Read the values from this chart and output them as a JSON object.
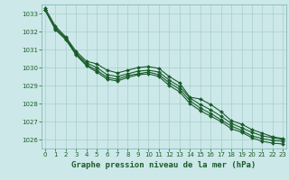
{
  "xlabel": "Graphe pression niveau de la mer (hPa)",
  "xlim": [
    -0.3,
    23.3
  ],
  "ylim": [
    1025.5,
    1033.5
  ],
  "yticks": [
    1026,
    1027,
    1028,
    1029,
    1030,
    1031,
    1032,
    1033
  ],
  "xticks": [
    0,
    1,
    2,
    3,
    4,
    5,
    6,
    7,
    8,
    9,
    10,
    11,
    12,
    13,
    14,
    15,
    16,
    17,
    18,
    19,
    20,
    21,
    22,
    23
  ],
  "background_color": "#cce8e8",
  "grid_color": "#aacece",
  "line_color": "#1a5c2a",
  "series": [
    [
      1033.3,
      1032.3,
      1031.7,
      1030.9,
      1030.35,
      1030.2,
      1029.85,
      1029.7,
      1029.85,
      1030.0,
      1030.05,
      1029.95,
      1029.5,
      1029.15,
      1028.35,
      1028.25,
      1027.95,
      1027.55,
      1027.05,
      1026.85,
      1026.55,
      1026.35,
      1026.15,
      1026.05
    ],
    [
      1033.2,
      1032.2,
      1031.65,
      1030.8,
      1030.25,
      1030.0,
      1029.6,
      1029.5,
      1029.65,
      1029.8,
      1029.85,
      1029.75,
      1029.3,
      1028.95,
      1028.3,
      1027.95,
      1027.65,
      1027.3,
      1026.9,
      1026.65,
      1026.4,
      1026.2,
      1026.1,
      1026.0
    ],
    [
      1033.2,
      1032.15,
      1031.6,
      1030.75,
      1030.15,
      1029.85,
      1029.45,
      1029.35,
      1029.55,
      1029.65,
      1029.75,
      1029.6,
      1029.15,
      1028.8,
      1028.15,
      1027.75,
      1027.45,
      1027.1,
      1026.75,
      1026.5,
      1026.2,
      1026.05,
      1025.95,
      1025.9
    ],
    [
      1033.2,
      1032.1,
      1031.55,
      1030.7,
      1030.1,
      1029.75,
      1029.35,
      1029.25,
      1029.45,
      1029.6,
      1029.65,
      1029.5,
      1029.0,
      1028.65,
      1028.0,
      1027.6,
      1027.3,
      1027.0,
      1026.6,
      1026.4,
      1026.1,
      1025.9,
      1025.8,
      1025.75
    ]
  ],
  "marker": "D",
  "markersize": 2.0,
  "linewidth": 0.8,
  "tick_fontsize": 5.0,
  "label_fontsize": 6.5,
  "label_fontweight": "bold",
  "tick_color": "#1a5c2a",
  "label_color": "#1a5c2a",
  "spine_color": "#7ab0b0"
}
